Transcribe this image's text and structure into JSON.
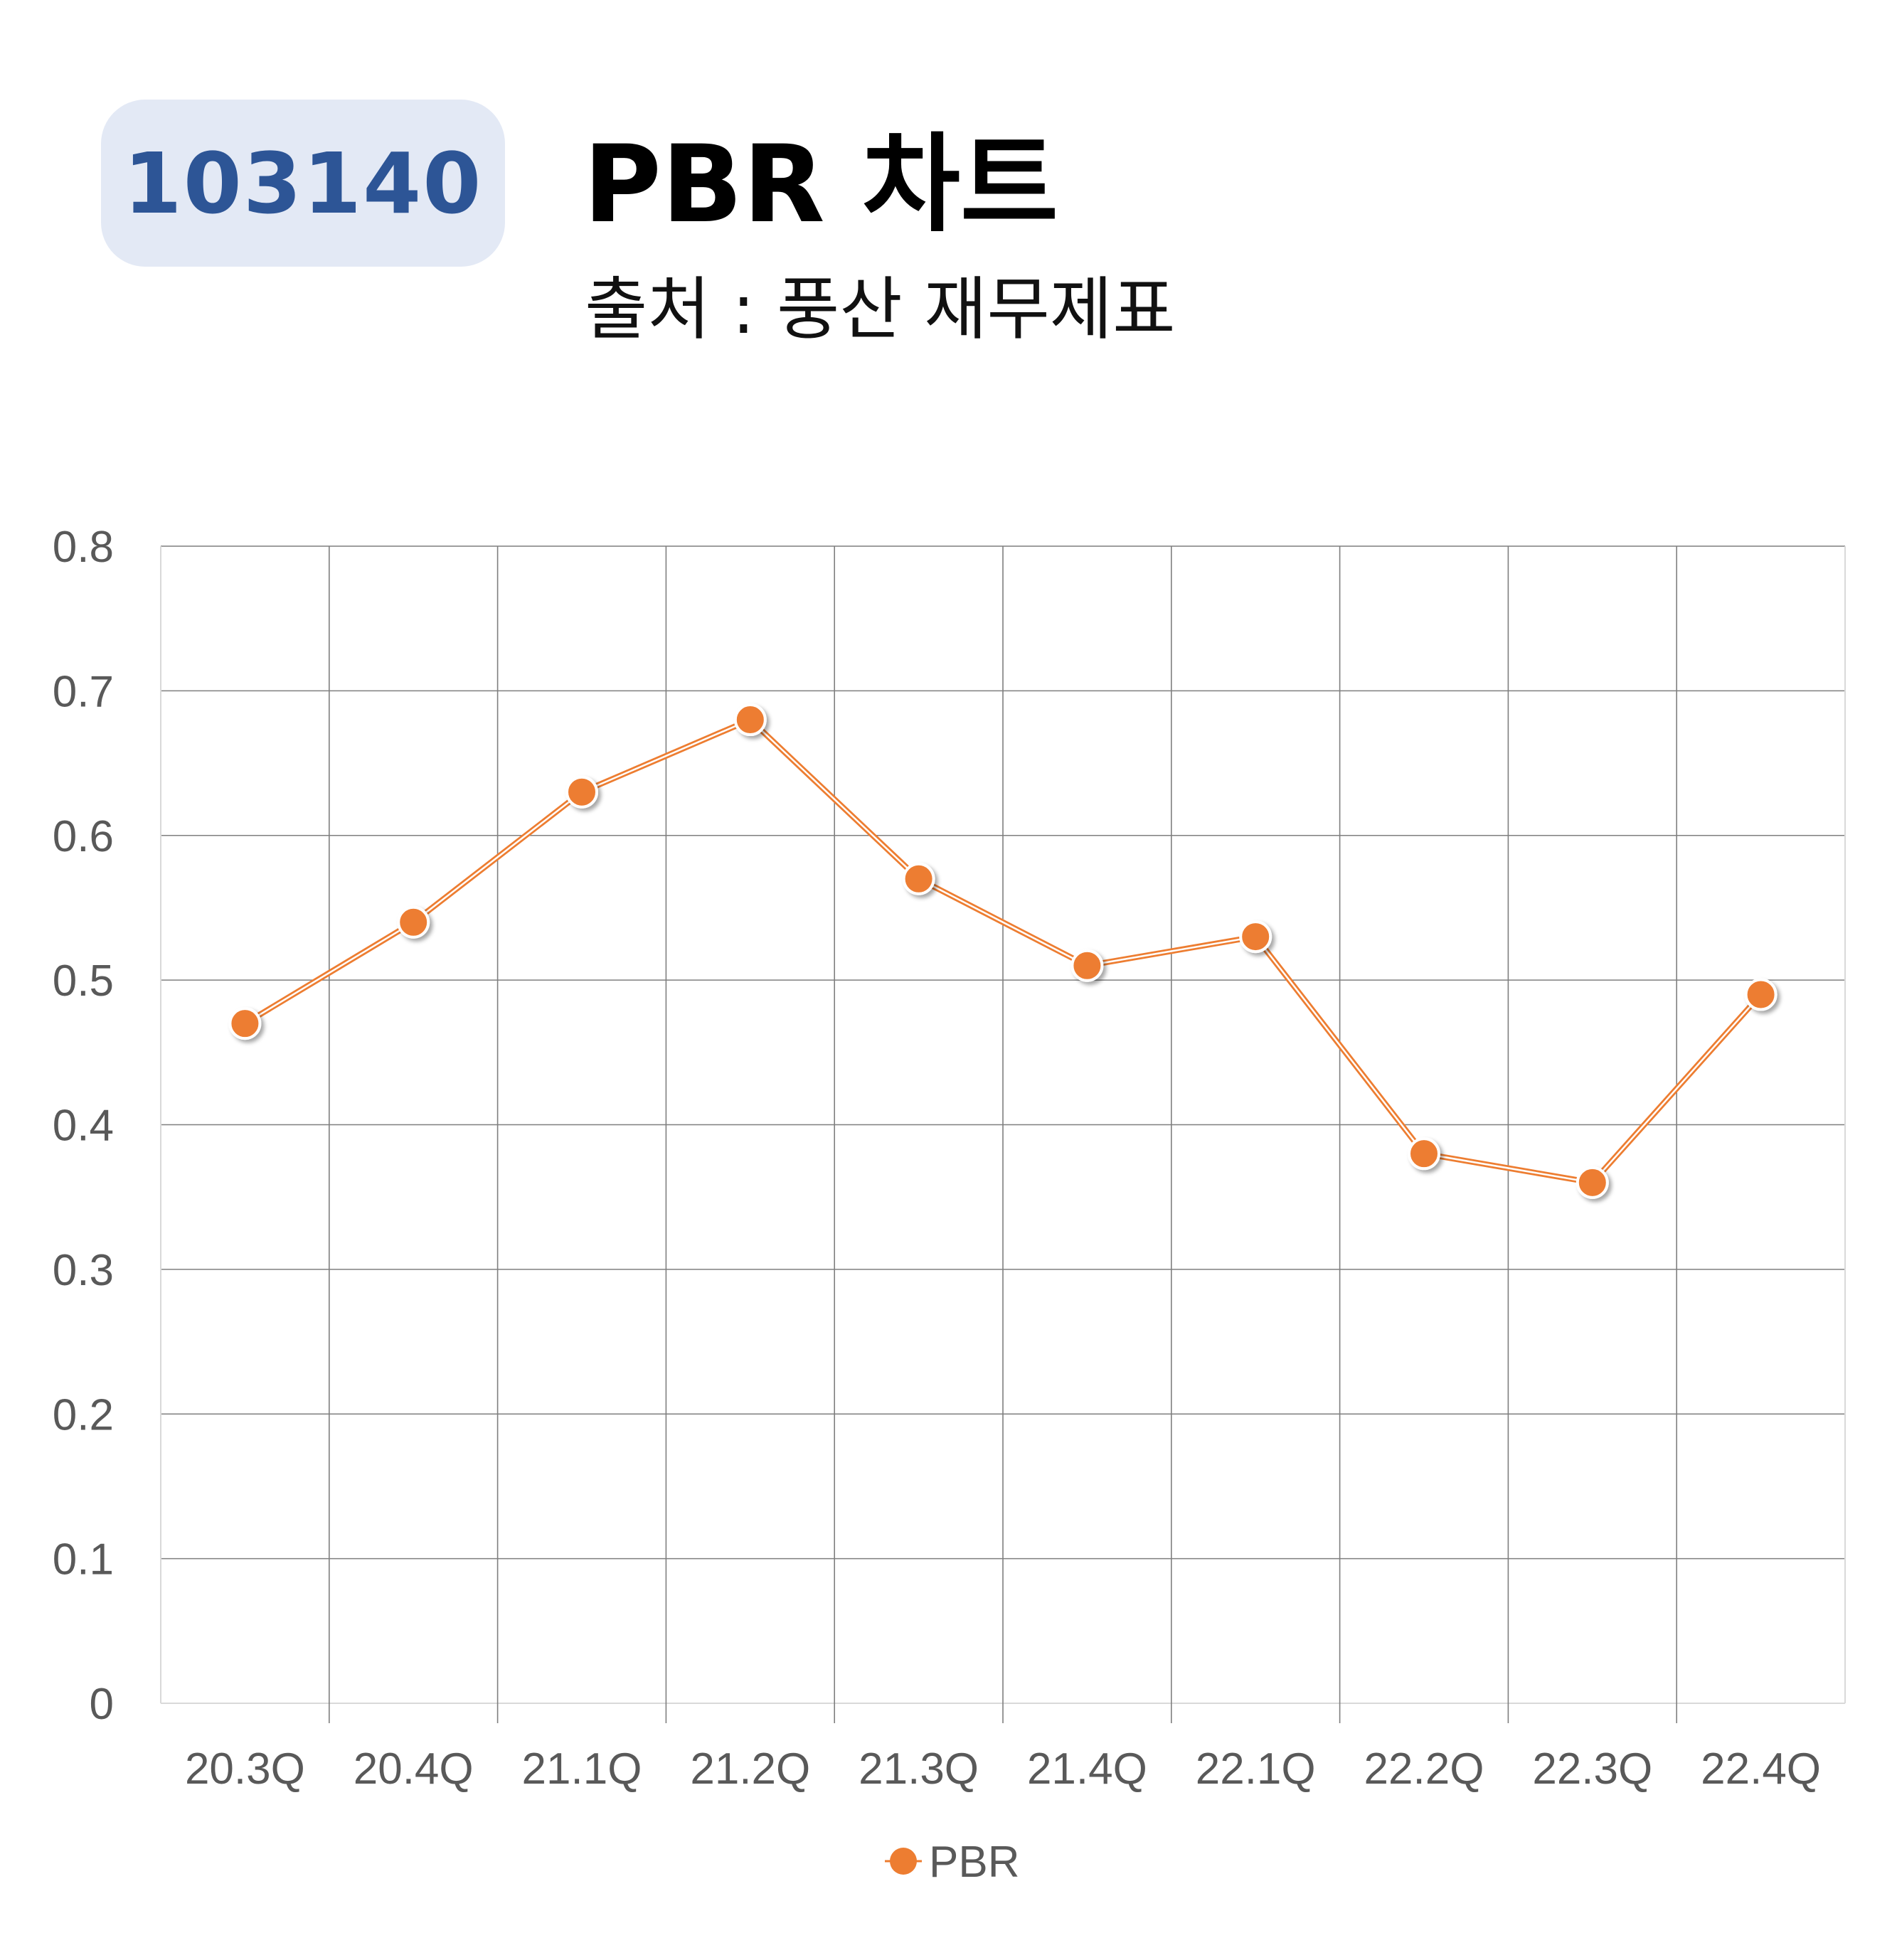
{
  "header": {
    "code": "103140",
    "title": "PBR 차트",
    "subtitle": "출처 : 풍산 재무제표"
  },
  "colors": {
    "badge_bg": "#e3e9f5",
    "badge_text": "#2d5596",
    "series": "#ed7d31",
    "grid": "#7f7f7f",
    "tick_text": "#595959"
  },
  "chart_data": {
    "type": "line",
    "categories": [
      "20.3Q",
      "20.4Q",
      "21.1Q",
      "21.2Q",
      "21.3Q",
      "21.4Q",
      "22.1Q",
      "22.2Q",
      "22.3Q",
      "22.4Q"
    ],
    "series": [
      {
        "name": "PBR",
        "values": [
          0.47,
          0.54,
          0.63,
          0.68,
          0.57,
          0.51,
          0.53,
          0.38,
          0.36,
          0.49
        ]
      }
    ],
    "ylim": [
      0,
      0.8
    ],
    "yticks": [
      "0",
      "0.1",
      "0.2",
      "0.3",
      "0.4",
      "0.5",
      "0.6",
      "0.7",
      "0.8"
    ],
    "xlabel": "",
    "ylabel": "",
    "grid": true,
    "legend": "bottom",
    "markers": true
  }
}
